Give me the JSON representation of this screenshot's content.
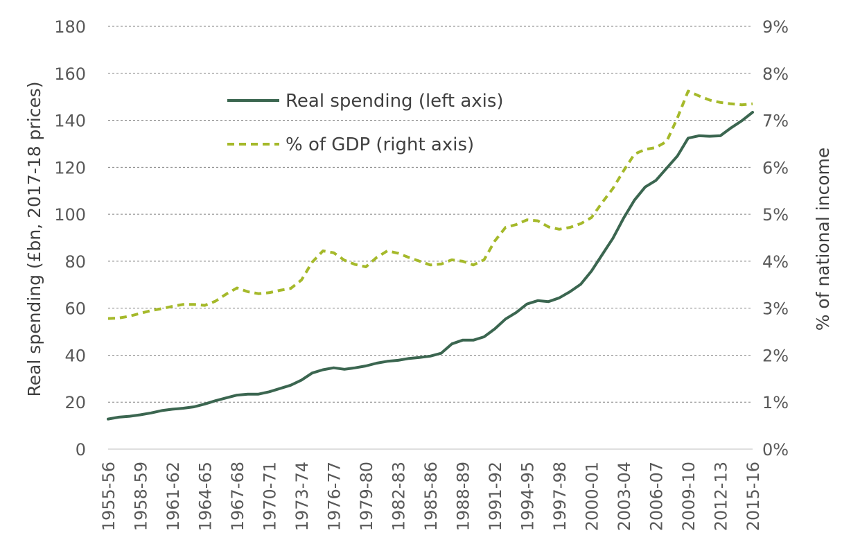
{
  "chart_data": {
    "type": "line",
    "ylabel": "Real spending (£bn, 2017-18 prices)",
    "y2label": "% of national income",
    "ylim": [
      0,
      180
    ],
    "y2lim": [
      0,
      9
    ],
    "yticks": [
      "0",
      "20",
      "40",
      "60",
      "80",
      "100",
      "120",
      "140",
      "160",
      "180"
    ],
    "y2ticks": [
      "0%",
      "1%",
      "2%",
      "3%",
      "4%",
      "5%",
      "6%",
      "7%",
      "8%",
      "9%"
    ],
    "xtick_labels": [
      "1955-56",
      "1958-59",
      "1961-62",
      "1964-65",
      "1967-68",
      "1970-71",
      "1973-74",
      "1976-77",
      "1979-80",
      "1982-83",
      "1985-86",
      "1988-89",
      "1991-92",
      "1994-95",
      "1997-98",
      "2000-01",
      "2003-04",
      "2006-07",
      "2009-10",
      "2012-13",
      "2015-16"
    ],
    "grid": true,
    "legend_position": "upper-left",
    "categories": [
      "1955-56",
      "1956-57",
      "1957-58",
      "1958-59",
      "1959-60",
      "1960-61",
      "1961-62",
      "1962-63",
      "1963-64",
      "1964-65",
      "1965-66",
      "1966-67",
      "1967-68",
      "1968-69",
      "1969-70",
      "1970-71",
      "1971-72",
      "1972-73",
      "1973-74",
      "1974-75",
      "1975-76",
      "1976-77",
      "1977-78",
      "1978-79",
      "1979-80",
      "1980-81",
      "1981-82",
      "1982-83",
      "1983-84",
      "1984-85",
      "1985-86",
      "1986-87",
      "1987-88",
      "1988-89",
      "1989-90",
      "1990-91",
      "1991-92",
      "1992-93",
      "1993-94",
      "1994-95",
      "1995-96",
      "1996-97",
      "1997-98",
      "1998-99",
      "1999-00",
      "2000-01",
      "2001-02",
      "2002-03",
      "2003-04",
      "2004-05",
      "2005-06",
      "2006-07",
      "2007-08",
      "2008-09",
      "2009-10",
      "2010-11",
      "2011-12",
      "2012-13",
      "2013-14",
      "2014-15",
      "2015-16"
    ],
    "series": [
      {
        "name": "Real spending (left axis)",
        "axis": "left",
        "color": "#3b6650",
        "style": "solid",
        "values": [
          12.8,
          13.6,
          14.0,
          14.6,
          15.4,
          16.4,
          17.0,
          17.4,
          18.0,
          19.2,
          20.6,
          21.8,
          23.0,
          23.4,
          23.4,
          24.4,
          25.8,
          27.2,
          29.4,
          32.4,
          33.8,
          34.6,
          34.0,
          34.6,
          35.4,
          36.6,
          37.4,
          37.8,
          38.6,
          39.0,
          39.6,
          40.8,
          44.8,
          46.4,
          46.4,
          47.8,
          51.2,
          55.4,
          58.2,
          61.8,
          63.2,
          62.8,
          64.4,
          67.0,
          70.2,
          75.8,
          82.8,
          89.8,
          98.4,
          106.0,
          111.6,
          114.4,
          119.6,
          124.8,
          132.4,
          133.4,
          133.2,
          133.4,
          136.8,
          139.8,
          143.4
        ]
      },
      {
        "name": "% of GDP (right axis)",
        "axis": "right",
        "color": "#a5b92a",
        "style": "dashed",
        "values": [
          2.78,
          2.79,
          2.83,
          2.89,
          2.95,
          2.99,
          3.04,
          3.08,
          3.08,
          3.06,
          3.15,
          3.3,
          3.43,
          3.35,
          3.31,
          3.33,
          3.38,
          3.42,
          3.6,
          3.98,
          4.22,
          4.18,
          4.02,
          3.93,
          3.88,
          4.08,
          4.22,
          4.17,
          4.08,
          4.0,
          3.92,
          3.94,
          4.03,
          4.0,
          3.92,
          4.03,
          4.43,
          4.72,
          4.78,
          4.88,
          4.86,
          4.73,
          4.68,
          4.72,
          4.8,
          4.93,
          5.25,
          5.55,
          5.93,
          6.28,
          6.38,
          6.42,
          6.55,
          7.05,
          7.62,
          7.52,
          7.43,
          7.38,
          7.35,
          7.33,
          7.35
        ]
      }
    ]
  }
}
